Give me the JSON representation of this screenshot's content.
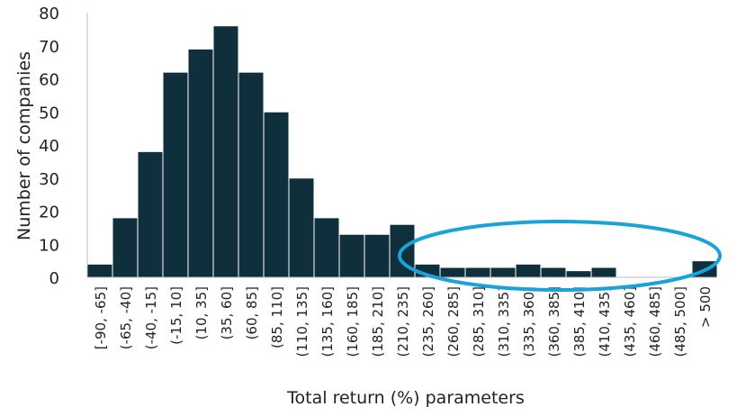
{
  "chart_data": {
    "type": "bar",
    "title": "",
    "xlabel": "Total return (%) parameters",
    "ylabel": "Number of companies",
    "ylim": [
      0,
      80
    ],
    "yticks": [
      0,
      10,
      20,
      30,
      40,
      50,
      60,
      70,
      80
    ],
    "grid": false,
    "legend": "none",
    "bar_color": "#0f2f3d",
    "bar_edge_color": "#ffffff",
    "highlight": {
      "shape": "ellipse",
      "color": "#1aa3d9",
      "encloses_categories": [
        "(235, 260]",
        "> 500"
      ]
    },
    "categories": [
      "[-90, -65]",
      "(-65, -40]",
      "(-40, -15]",
      "(-15, 10]",
      "(10, 35]",
      "(35, 60]",
      "(60, 85]",
      "(85, 110]",
      "(110, 135]",
      "(135, 160]",
      "(160, 185]",
      "(185, 210]",
      "(210, 235]",
      "(235, 260]",
      "(260, 285]",
      "(285, 310]",
      "(310, 335]",
      "(335, 360]",
      "(360, 385]",
      "(385, 410]",
      "(410, 435]",
      "(435, 460]",
      "(460, 485]",
      "(485, 500]",
      "> 500"
    ],
    "values": [
      4,
      18,
      38,
      62,
      69,
      76,
      62,
      50,
      30,
      18,
      13,
      13,
      16,
      4,
      3,
      3,
      3,
      4,
      3,
      2,
      3,
      0,
      0,
      0,
      5
    ]
  }
}
